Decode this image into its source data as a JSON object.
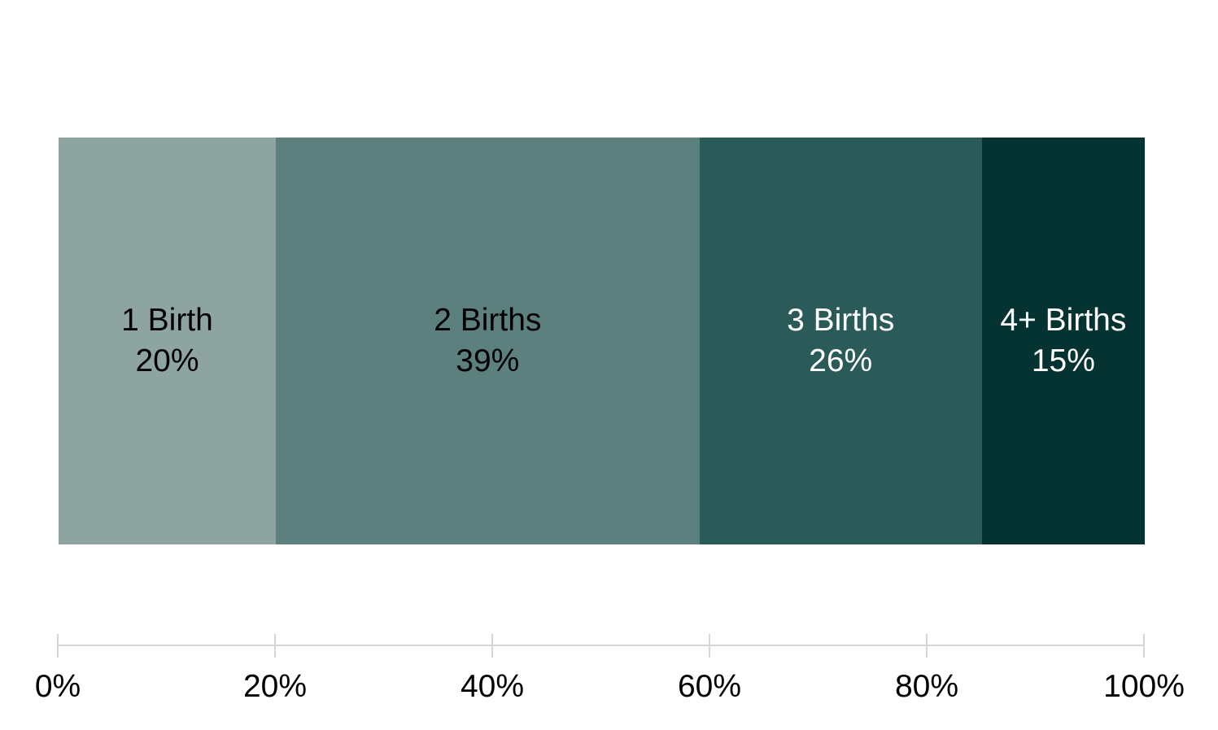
{
  "chart_data": {
    "type": "bar",
    "subtype": "horizontal-100pct-stacked",
    "title": "",
    "categories": [
      "1 Birth",
      "2 Births",
      "3 Births",
      "4+ Births"
    ],
    "values": [
      20,
      39,
      26,
      15
    ],
    "value_labels": [
      "20%",
      "39%",
      "26%",
      "15%"
    ],
    "segment_colors": [
      "#8DA4A1",
      "#5C807E",
      "#2B5B58",
      "#043331"
    ],
    "label_colors": [
      "#000000",
      "#000000",
      "#ffffff",
      "#ffffff"
    ],
    "axis": {
      "range": [
        0,
        100
      ],
      "tick_values": [
        0,
        20,
        40,
        60,
        80,
        100
      ],
      "tick_labels": [
        "0%",
        "20%",
        "40%",
        "60%",
        "80%",
        "100%"
      ],
      "line_color": "#D6D6D6",
      "label_color": "#000000"
    },
    "legend": "none",
    "grid": "off",
    "background": "#ffffff"
  }
}
